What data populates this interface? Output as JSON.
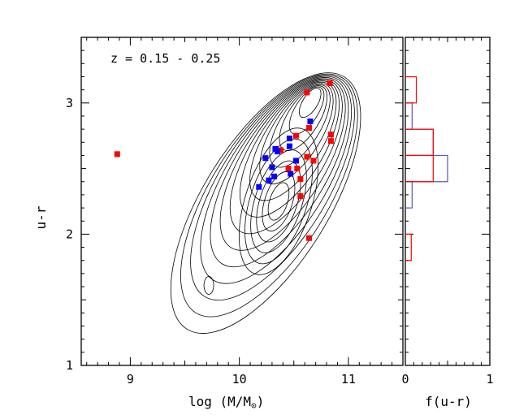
{
  "chart_data": [
    {
      "type": "scatter",
      "annotation": "z = 0.15 - 0.25",
      "xlabel": "log (M/M",
      "xlabel_symbol": "⊙",
      "xlabel_close": ")",
      "ylabel": "u-r",
      "xlim": [
        8.55,
        11.5
      ],
      "ylim": [
        1,
        3.5
      ],
      "xticks": [
        {
          "v": 9,
          "label": "9"
        },
        {
          "v": 10,
          "label": "10"
        },
        {
          "v": 11,
          "label": "11"
        }
      ],
      "yticks": [
        {
          "v": 1,
          "label": "1"
        },
        {
          "v": 2,
          "label": "2"
        },
        {
          "v": 3,
          "label": "3"
        }
      ],
      "contour_background": "galaxy number-density contours",
      "series": [
        {
          "name": "red",
          "color": "#ff0000",
          "points": [
            {
              "x": 8.88,
              "y": 2.61
            },
            {
              "x": 10.38,
              "y": 2.64
            },
            {
              "x": 10.45,
              "y": 2.5
            },
            {
              "x": 10.52,
              "y": 2.75
            },
            {
              "x": 10.53,
              "y": 2.5
            },
            {
              "x": 10.56,
              "y": 2.42
            },
            {
              "x": 10.56,
              "y": 2.29
            },
            {
              "x": 10.62,
              "y": 2.59
            },
            {
              "x": 10.62,
              "y": 3.08
            },
            {
              "x": 10.64,
              "y": 2.81
            },
            {
              "x": 10.64,
              "y": 1.97
            },
            {
              "x": 10.68,
              "y": 2.56
            },
            {
              "x": 10.83,
              "y": 3.15
            },
            {
              "x": 10.84,
              "y": 2.76
            },
            {
              "x": 10.84,
              "y": 2.71
            }
          ]
        },
        {
          "name": "blue",
          "color": "#0000ff",
          "points": [
            {
              "x": 10.18,
              "y": 2.36
            },
            {
              "x": 10.24,
              "y": 2.58
            },
            {
              "x": 10.27,
              "y": 2.41
            },
            {
              "x": 10.3,
              "y": 2.51
            },
            {
              "x": 10.32,
              "y": 2.44
            },
            {
              "x": 10.33,
              "y": 2.65
            },
            {
              "x": 10.35,
              "y": 2.63
            },
            {
              "x": 10.46,
              "y": 2.73
            },
            {
              "x": 10.46,
              "y": 2.67
            },
            {
              "x": 10.47,
              "y": 2.46
            },
            {
              "x": 10.52,
              "y": 2.56
            },
            {
              "x": 10.65,
              "y": 2.86
            }
          ]
        }
      ]
    },
    {
      "type": "histogram",
      "orientation": "horizontal",
      "xlabel": "f(u-r)",
      "xlim": [
        0,
        1
      ],
      "ylim": [
        1,
        3.5
      ],
      "xticks": [
        {
          "v": 0,
          "label": "0"
        },
        {
          "v": 1,
          "label": "1"
        }
      ],
      "bin_width": 0.2,
      "series": [
        {
          "name": "red",
          "color": "#ff0000",
          "bins": [
            {
              "y": 1.8,
              "f": 0.07
            },
            {
              "y": 2.0,
              "f": 0
            },
            {
              "y": 2.2,
              "f": 0
            },
            {
              "y": 2.4,
              "f": 0.33
            },
            {
              "y": 2.6,
              "f": 0.33
            },
            {
              "y": 2.8,
              "f": 0
            },
            {
              "y": 3.0,
              "f": 0.13
            },
            {
              "y": 3.2,
              "f": 0
            }
          ]
        },
        {
          "name": "blue",
          "color": "#5555bb",
          "bins": [
            {
              "y": 2.2,
              "f": 0.08
            },
            {
              "y": 2.4,
              "f": 0.5
            },
            {
              "y": 2.6,
              "f": 0.33
            },
            {
              "y": 2.8,
              "f": 0.08
            }
          ]
        }
      ]
    }
  ]
}
